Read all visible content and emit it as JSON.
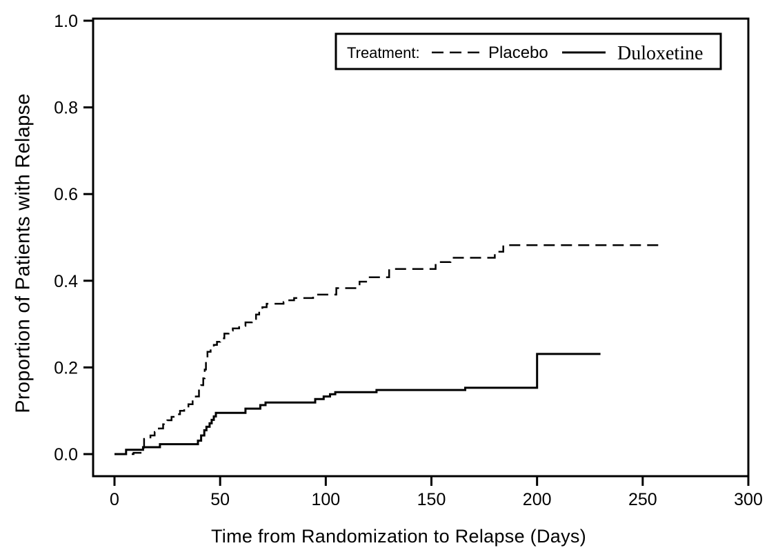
{
  "figure": {
    "background_color": "#ffffff",
    "ink_color": "#000000"
  },
  "chart_data": {
    "type": "line",
    "subtype": "kaplan-meier-step",
    "title": "",
    "xlabel": "Time from Randomization to Relapse (Days)",
    "ylabel": "Proportion of Patients with Relapse",
    "xlim": [
      0,
      300
    ],
    "ylim": [
      0.0,
      1.0
    ],
    "grid": false,
    "xticks": {
      "values": [
        0,
        50,
        100,
        150,
        200,
        250,
        300
      ],
      "labels": [
        "0",
        "50",
        "100",
        "150",
        "200",
        "250",
        "300"
      ]
    },
    "yticks": {
      "values": [
        0.0,
        0.2,
        0.4,
        0.6,
        0.8,
        1.0
      ],
      "labels": [
        "0.0",
        "0.2",
        "0.4",
        "0.6",
        "0.8",
        "1.0"
      ]
    },
    "legend": {
      "title": "Treatment:",
      "position": "top-right",
      "entries": [
        {
          "label": "Placebo",
          "line_style": "dashed"
        },
        {
          "label": "Duloxetine",
          "line_style": "solid"
        }
      ]
    },
    "series": [
      {
        "name": "Placebo",
        "line_style": "dashed",
        "step_mode": "step-after",
        "end_x": 260,
        "final_value": 0.482,
        "points": [
          [
            0,
            0
          ],
          [
            9,
            0.003
          ],
          [
            13,
            0.015
          ],
          [
            14,
            0.035
          ],
          [
            17,
            0.043
          ],
          [
            19,
            0.051
          ],
          [
            21,
            0.059
          ],
          [
            23,
            0.069
          ],
          [
            25,
            0.078
          ],
          [
            27,
            0.086
          ],
          [
            29,
            0.092
          ],
          [
            31,
            0.1
          ],
          [
            33,
            0.108
          ],
          [
            35,
            0.115
          ],
          [
            37,
            0.124
          ],
          [
            38.5,
            0.133
          ],
          [
            40,
            0.147
          ],
          [
            41,
            0.159
          ],
          [
            42,
            0.175
          ],
          [
            42.7,
            0.195
          ],
          [
            43.3,
            0.217
          ],
          [
            44,
            0.236
          ],
          [
            45.5,
            0.244
          ],
          [
            47,
            0.252
          ],
          [
            48.5,
            0.259
          ],
          [
            50,
            0.267
          ],
          [
            52,
            0.278
          ],
          [
            54,
            0.285
          ],
          [
            56,
            0.29
          ],
          [
            59,
            0.296
          ],
          [
            62,
            0.304
          ],
          [
            65,
            0.312
          ],
          [
            67,
            0.322
          ],
          [
            68.5,
            0.331
          ],
          [
            70,
            0.339
          ],
          [
            72,
            0.347
          ],
          [
            80,
            0.351
          ],
          [
            82,
            0.355
          ],
          [
            85,
            0.36
          ],
          [
            94,
            0.368
          ],
          [
            105,
            0.383
          ],
          [
            116,
            0.398
          ],
          [
            120,
            0.408
          ],
          [
            130,
            0.427
          ],
          [
            152,
            0.443
          ],
          [
            159,
            0.453
          ],
          [
            180,
            0.467
          ],
          [
            184,
            0.482
          ]
        ]
      },
      {
        "name": "Duloxetine",
        "line_style": "solid",
        "step_mode": "step-after",
        "end_x": 230,
        "final_value": 0.231,
        "points": [
          [
            0,
            0
          ],
          [
            5.5,
            0.01
          ],
          [
            13.5,
            0.016
          ],
          [
            21.5,
            0.023
          ],
          [
            39.5,
            0.031
          ],
          [
            41,
            0.043
          ],
          [
            42.5,
            0.055
          ],
          [
            43.5,
            0.063
          ],
          [
            45,
            0.071
          ],
          [
            46,
            0.079
          ],
          [
            47,
            0.087
          ],
          [
            48,
            0.095
          ],
          [
            62,
            0.105
          ],
          [
            69,
            0.113
          ],
          [
            71.5,
            0.119
          ],
          [
            95,
            0.127
          ],
          [
            99,
            0.133
          ],
          [
            102,
            0.138
          ],
          [
            104.5,
            0.143
          ],
          [
            124,
            0.148
          ],
          [
            166,
            0.153
          ],
          [
            200,
            0.231
          ]
        ]
      }
    ]
  }
}
